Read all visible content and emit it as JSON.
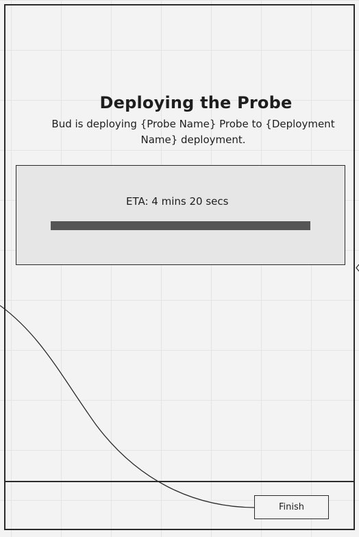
{
  "dialog": {
    "title": "Deploying the Probe",
    "description": "Bud is deploying {Probe Name} Probe to {Deployment Name} deployment."
  },
  "progress": {
    "eta_label": "ETA: 4 mins 20 secs",
    "fraction": 1.0
  },
  "footer": {
    "finish_label": "Finish"
  }
}
